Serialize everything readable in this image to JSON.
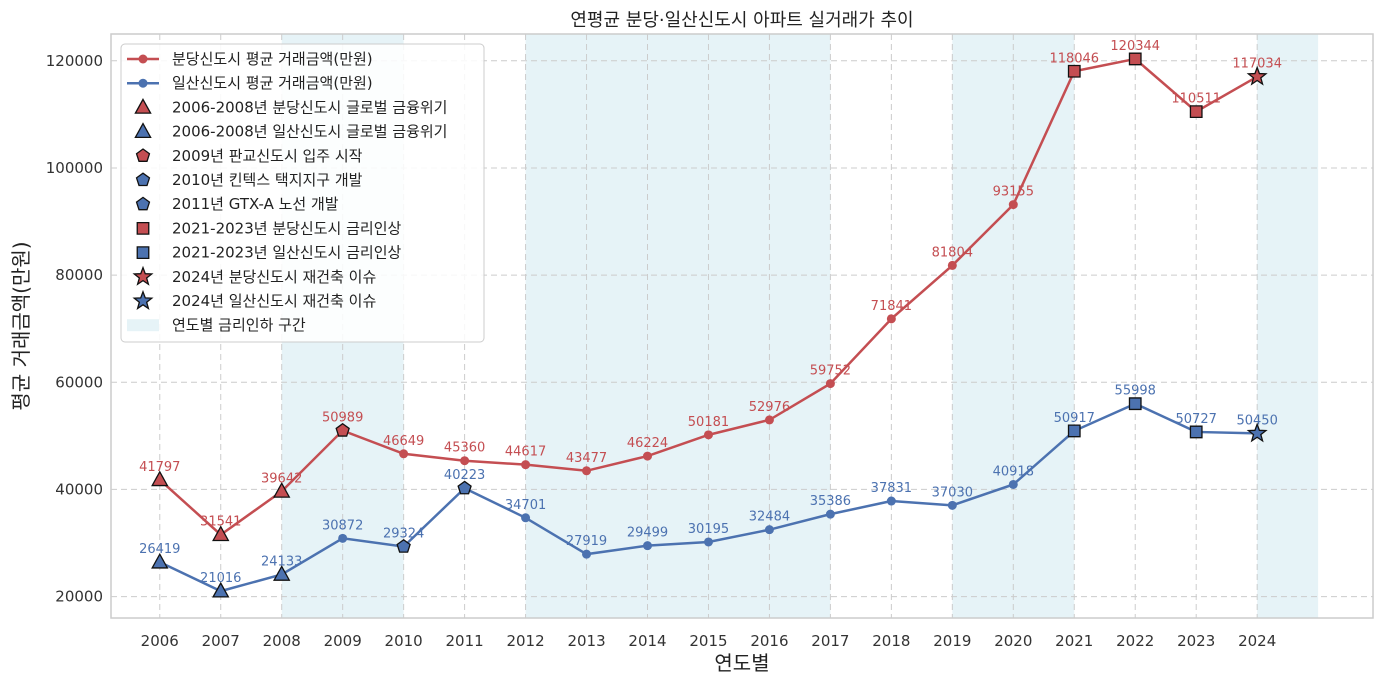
{
  "chart_data": {
    "type": "line",
    "title": "연평균 분당·일산신도시 아파트 실거래가 추이",
    "xlabel": "연도별",
    "ylabel": "평균 거래금액(만원)",
    "ylim": [
      16000,
      125000
    ],
    "yticks": [
      20000,
      40000,
      60000,
      80000,
      100000,
      120000
    ],
    "grid": true,
    "legend_position": "top-left",
    "x": [
      2006,
      2007,
      2008,
      2009,
      2010,
      2011,
      2012,
      2013,
      2014,
      2015,
      2016,
      2017,
      2018,
      2019,
      2020,
      2021,
      2022,
      2023,
      2024
    ],
    "series": [
      {
        "name": "분당신도시 평균 거래금액(만원)",
        "color": "#c44e52",
        "values": [
          41797,
          31541,
          39642,
          50989,
          46649,
          45360,
          44617,
          43477,
          46224,
          50181,
          52976,
          59752,
          71841,
          81804,
          93155,
          118046,
          120344,
          110511,
          117034
        ]
      },
      {
        "name": "일산신도시 평균 거래금액(만원)",
        "color": "#4c72b0",
        "values": [
          26419,
          21016,
          24133,
          30872,
          29324,
          40223,
          34701,
          27919,
          29499,
          30195,
          32484,
          35386,
          37831,
          37030,
          40918,
          50917,
          55998,
          50727,
          50450
        ]
      }
    ],
    "event_markers": [
      {
        "label": "2006-2008년 분당신도시 글로벌 금융위기",
        "series": 0,
        "marker": "triangle",
        "years": [
          2006,
          2007,
          2008
        ]
      },
      {
        "label": "2006-2008년 일산신도시 글로벌 금융위기",
        "series": 1,
        "marker": "triangle",
        "years": [
          2006,
          2007,
          2008
        ]
      },
      {
        "label": "2009년 판교신도시 입주 시작",
        "series": 0,
        "marker": "pentagon",
        "years": [
          2009
        ]
      },
      {
        "label": "2010년 킨텍스 택지지구 개발",
        "series": 1,
        "marker": "pentagon",
        "years": [
          2010
        ]
      },
      {
        "label": "2011년 GTX-A 노선 개발",
        "series": 1,
        "marker": "pentagon",
        "years": [
          2011
        ]
      },
      {
        "label": "2021-2023년 분당신도시 금리인상",
        "series": 0,
        "marker": "square",
        "years": [
          2021,
          2022,
          2023
        ]
      },
      {
        "label": "2021-2023년 일산신도시 금리인상",
        "series": 1,
        "marker": "square",
        "years": [
          2021,
          2022,
          2023
        ]
      },
      {
        "label": "2024년 분당신도시 재건축 이슈",
        "series": 0,
        "marker": "star",
        "years": [
          2024
        ]
      },
      {
        "label": "2024년 일산신도시 재건축 이슈",
        "series": 1,
        "marker": "star",
        "years": [
          2024
        ]
      }
    ],
    "shaded_regions": {
      "label": "연도별 금리인하 구간",
      "color": "#add8e6",
      "ranges": [
        [
          2008,
          2010
        ],
        [
          2012,
          2017
        ],
        [
          2019,
          2021
        ],
        [
          2024,
          2025
        ]
      ]
    }
  }
}
